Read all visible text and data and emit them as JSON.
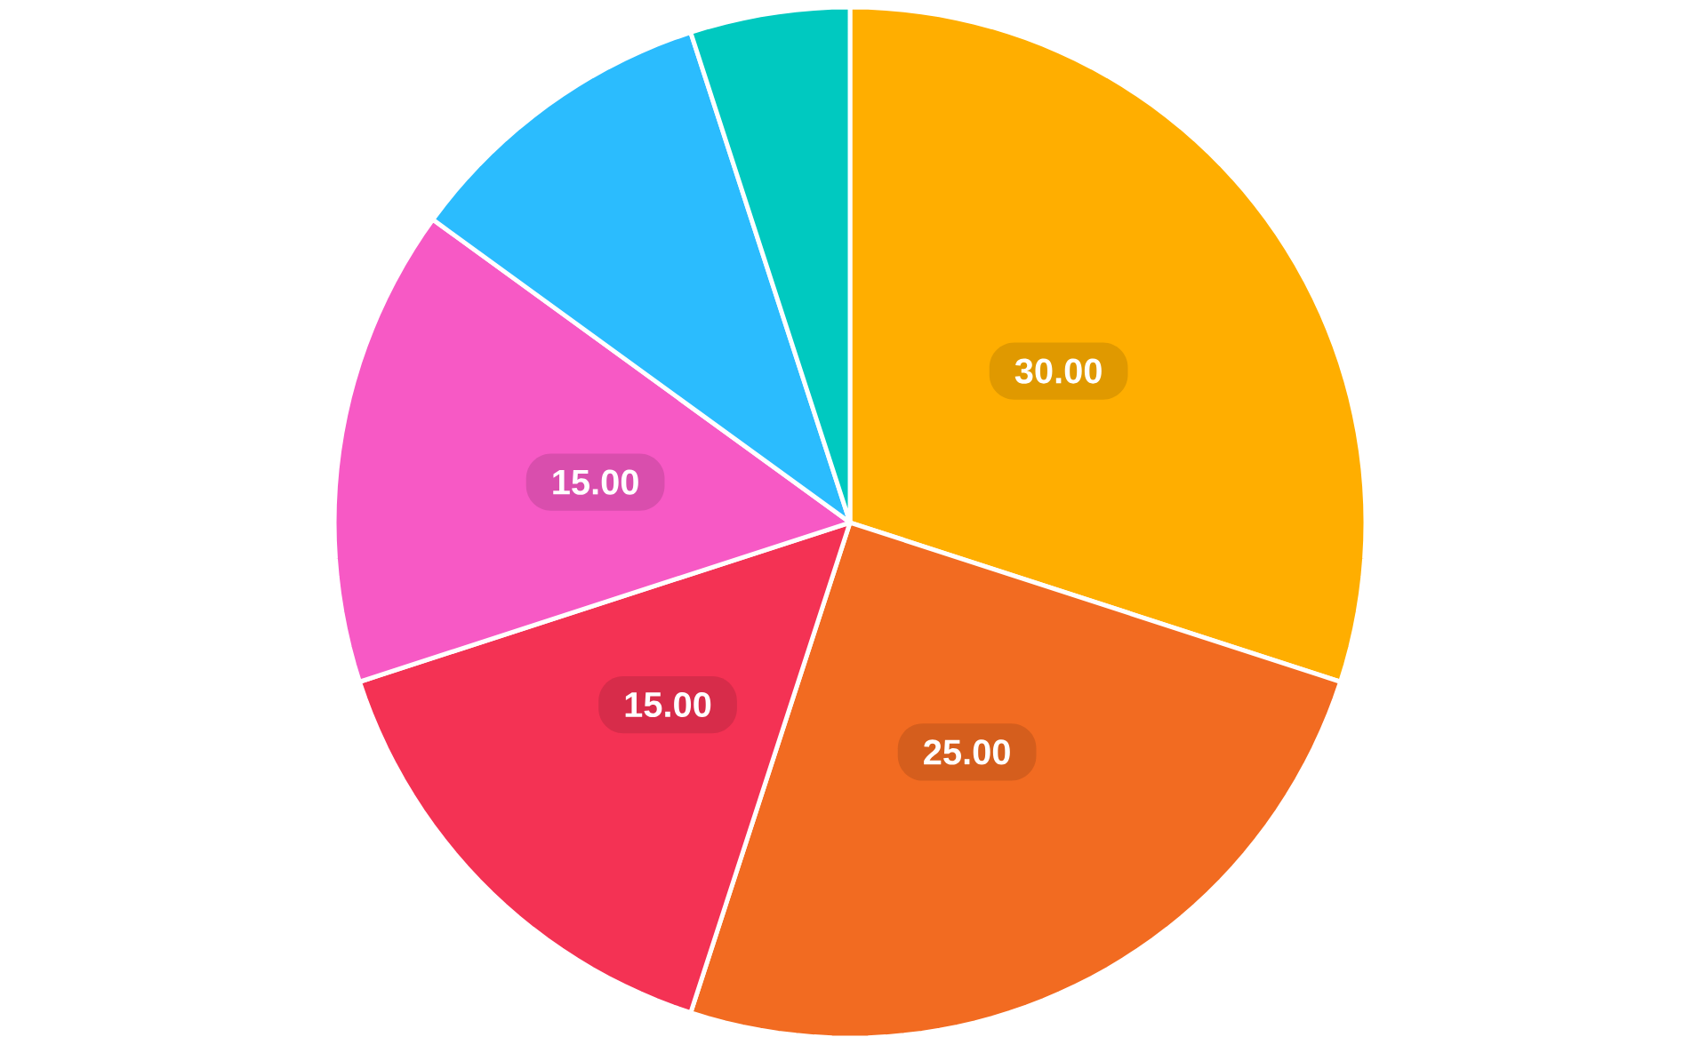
{
  "chart_data": {
    "type": "pie",
    "categories": [
      null,
      null,
      null,
      null,
      null,
      null
    ],
    "values": [
      30,
      25,
      15,
      15,
      10,
      5
    ],
    "colors": [
      "#ffae00",
      "#f26b21",
      "#f43254",
      "#f759c5",
      "#2bbcfe",
      "#00c9c0"
    ],
    "value_labels": [
      "30.00",
      "25.00",
      "15.00",
      "15.00",
      null,
      null
    ]
  }
}
